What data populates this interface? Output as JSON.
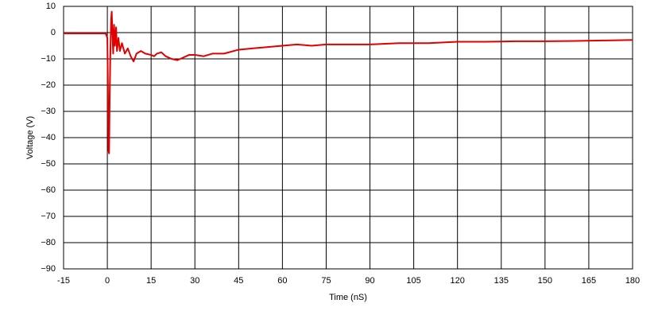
{
  "chart_data": {
    "type": "line",
    "xlabel": "Time (nS)",
    "ylabel": "Voltage (V)",
    "x": [
      -15,
      -10,
      -5,
      -1,
      -0.5,
      0,
      0.2,
      0.4,
      0.6,
      0.8,
      1,
      1.3,
      1.5,
      1.8,
      2.0,
      2.3,
      2.6,
      3,
      3.3,
      3.8,
      4.3,
      5,
      6,
      7,
      8,
      9,
      10,
      11.5,
      13,
      15,
      16,
      17,
      18.5,
      20,
      22,
      24,
      26,
      28,
      30,
      33,
      36,
      40,
      45,
      50,
      55,
      60,
      65,
      70,
      75,
      80,
      90,
      100,
      110,
      120,
      130,
      140,
      150,
      160,
      170,
      180
    ],
    "values": [
      -0.3,
      -0.3,
      -0.3,
      -0.3,
      -0.5,
      -2,
      -20,
      -45,
      -46,
      -25,
      -10,
      5,
      8,
      -2,
      -8,
      3,
      -5,
      2,
      -7,
      -2,
      -7,
      -4,
      -8,
      -6,
      -9,
      -11,
      -8,
      -7,
      -8,
      -8.5,
      -9,
      -8,
      -7.5,
      -9,
      -10,
      -10.5,
      -9.5,
      -8.5,
      -8.5,
      -9,
      -8,
      -8,
      -6.5,
      -6,
      -5.5,
      -5,
      -4.5,
      -5,
      -4.5,
      -4.5,
      -4.5,
      -4,
      -4,
      -3.5,
      -3.5,
      -3.3,
      -3.3,
      -3.2,
      -3,
      -2.8
    ],
    "color": "#e00000",
    "xlim": [
      -15,
      180
    ],
    "xticks": [
      -15,
      0,
      15,
      30,
      45,
      60,
      75,
      90,
      105,
      120,
      135,
      150,
      165,
      180
    ],
    "ylim": [
      -90,
      10
    ],
    "yticks": [
      10,
      0,
      {
        "value": -10,
        "label": "−10"
      },
      {
        "value": -20,
        "label": "−20"
      },
      {
        "value": -30,
        "label": "−30"
      },
      {
        "value": -40,
        "label": "−40"
      },
      {
        "value": -50,
        "label": "−50"
      },
      {
        "value": -60,
        "label": "−60"
      },
      {
        "value": -70,
        "label": "−70"
      },
      {
        "value": -80,
        "label": "−80"
      },
      {
        "value": -90,
        "label": "−90"
      }
    ],
    "grid": true
  }
}
